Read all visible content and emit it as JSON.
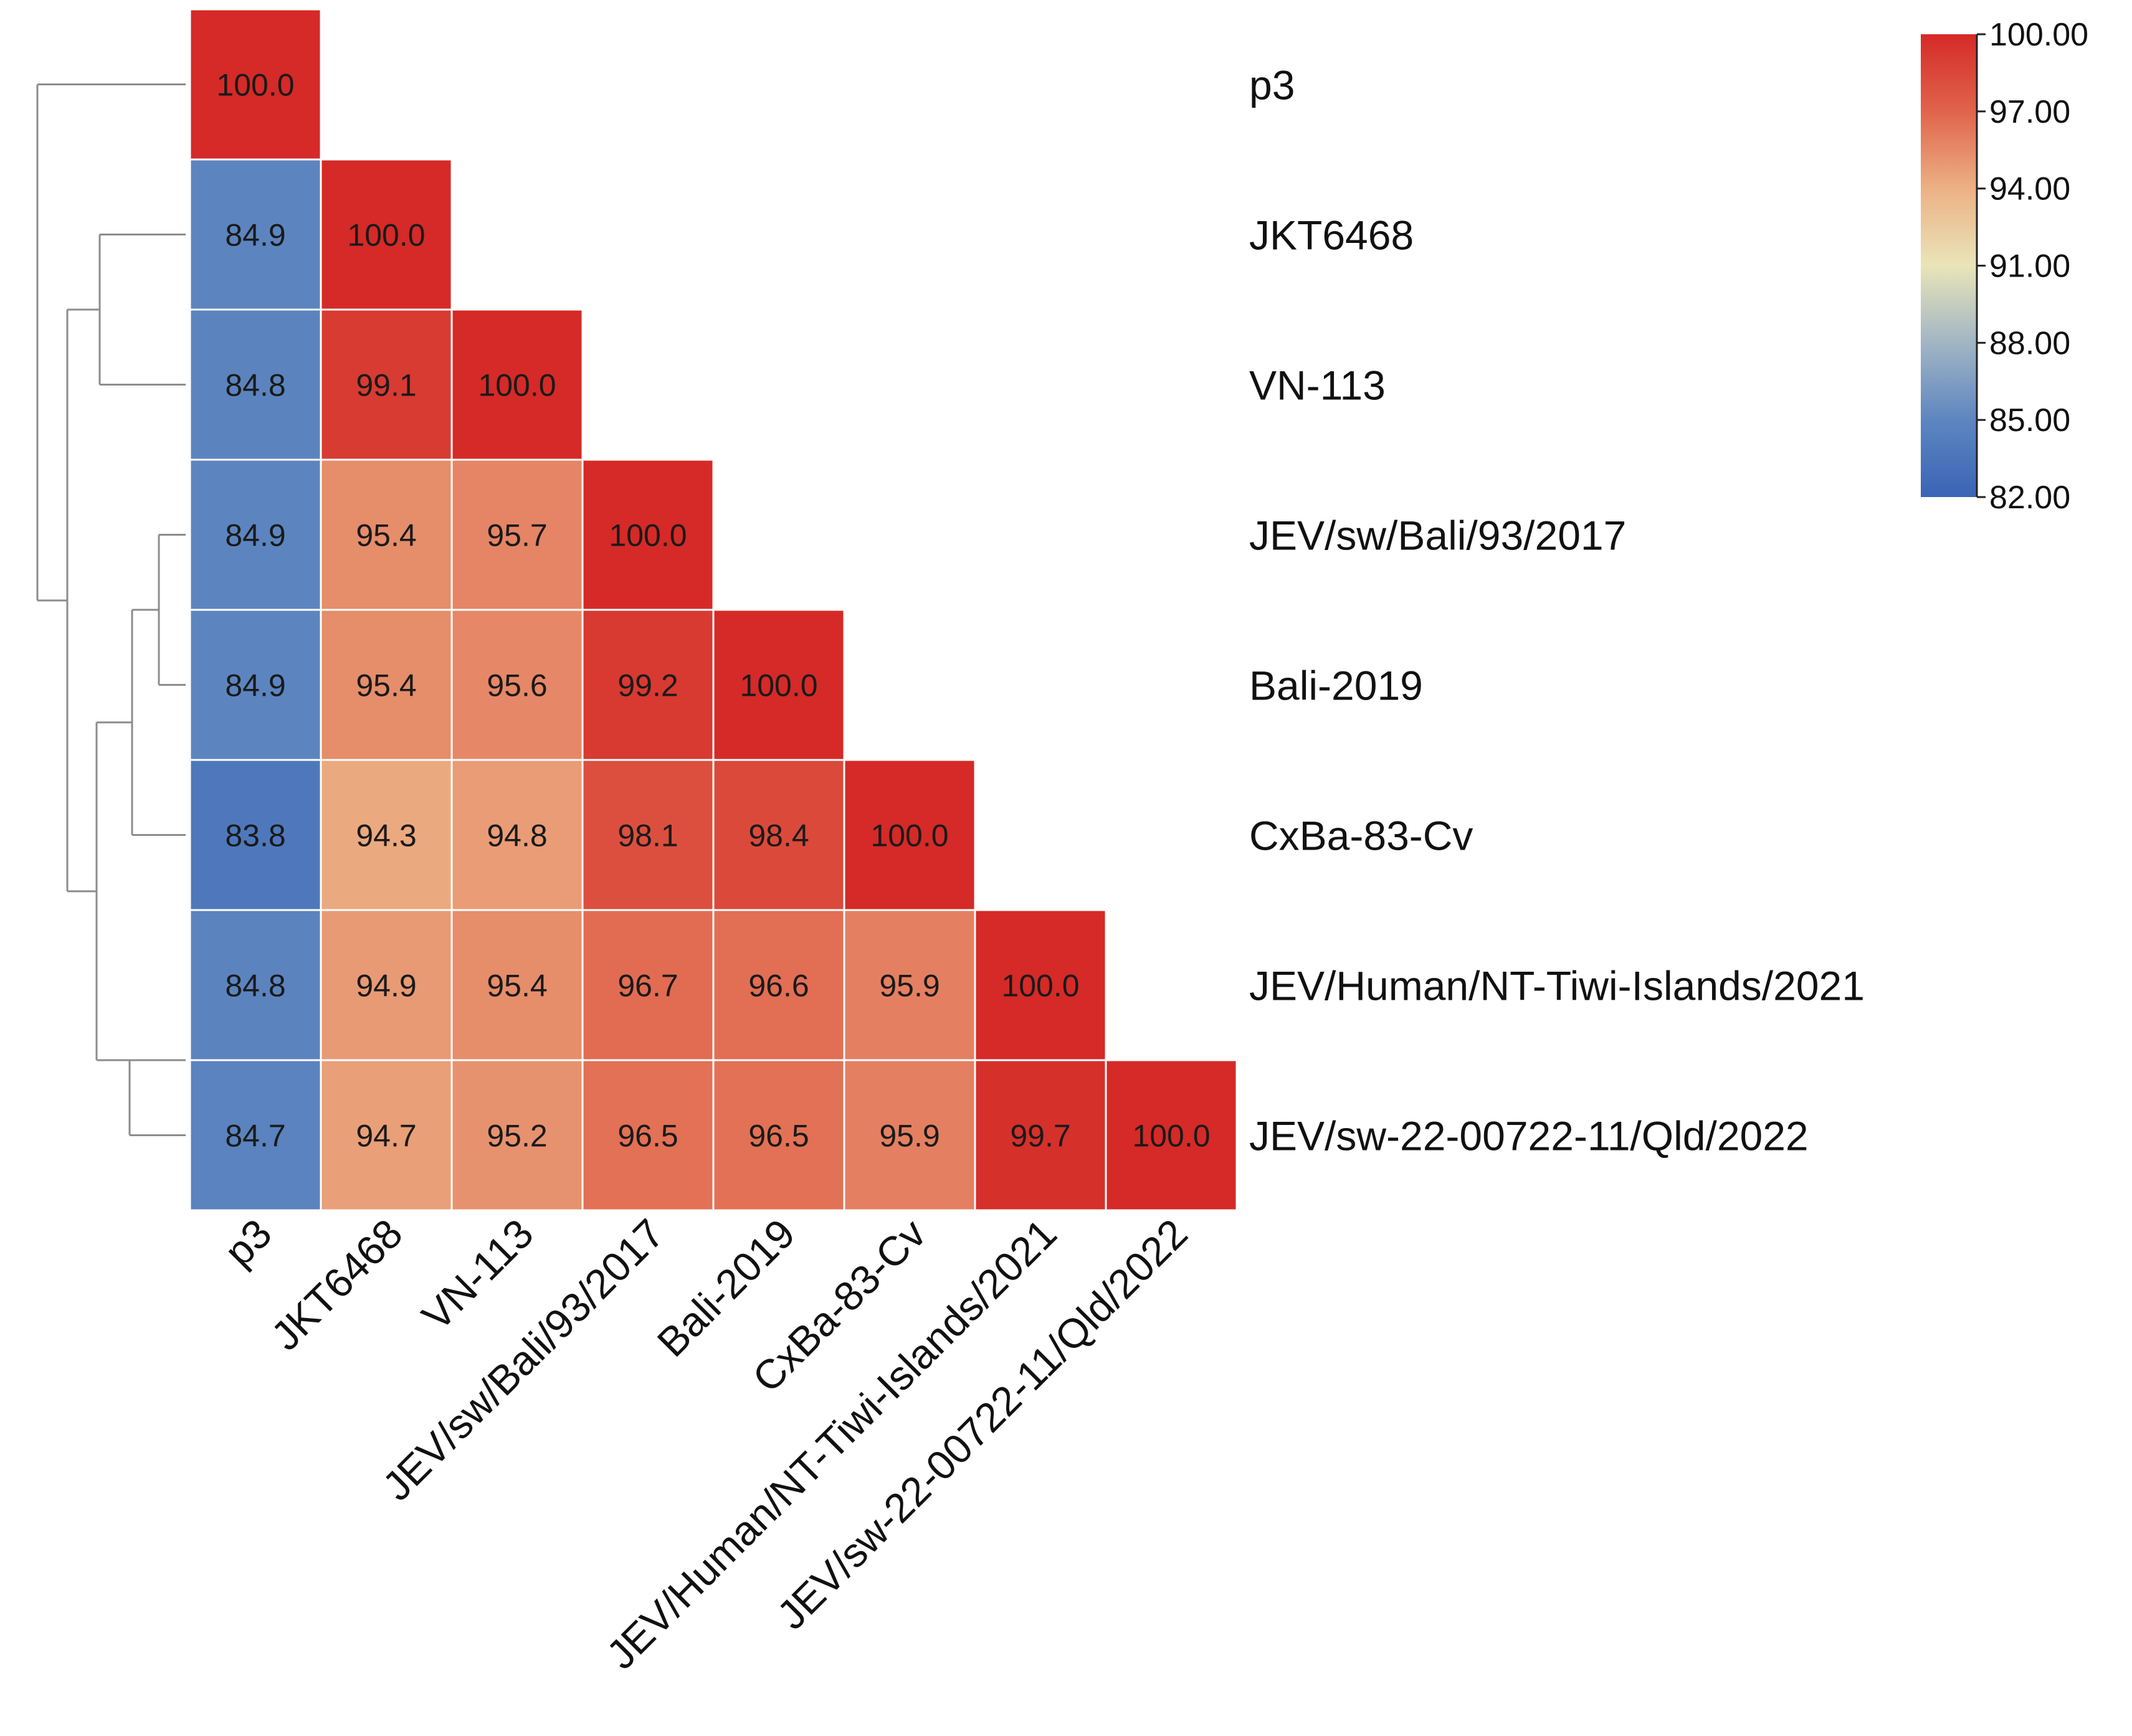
{
  "chart_data": {
    "type": "heatmap",
    "layout": "lower-triangle",
    "labels": [
      "p3",
      "JKT6468",
      "VN-113",
      "JEV/sw/Bali/93/2017",
      "Bali-2019",
      "CxBa-83-Cv",
      "JEV/Human/NT-Tiwi-Islands/2021",
      "JEV/sw-22-00722-11/Qld/2022"
    ],
    "values": [
      [
        100.0
      ],
      [
        84.9,
        100.0
      ],
      [
        84.8,
        99.1,
        100.0
      ],
      [
        84.9,
        95.4,
        95.7,
        100.0
      ],
      [
        84.9,
        95.4,
        95.6,
        99.2,
        100.0
      ],
      [
        83.8,
        94.3,
        94.8,
        98.1,
        98.4,
        100.0
      ],
      [
        84.8,
        94.9,
        95.4,
        96.7,
        96.6,
        95.9,
        100.0
      ],
      [
        84.7,
        94.7,
        95.2,
        96.5,
        96.5,
        95.9,
        99.7,
        100.0
      ]
    ],
    "colorbar": {
      "min": 82.0,
      "max": 100.0,
      "ticks": [
        "100.00",
        "97.00",
        "94.00",
        "91.00",
        "88.00",
        "85.00",
        "82.00"
      ],
      "colors": [
        "#3a64b5",
        "#5d86c0",
        "#a2b5c4",
        "#e9e5b8",
        "#ecb185",
        "#e0644c",
        "#d52a27"
      ]
    },
    "dendrogram": {
      "side": "left",
      "clusters": [
        {
          "name": "p3",
          "children": []
        },
        {
          "name": "root",
          "children": [
            "p3",
            "rest"
          ]
        },
        {
          "name": "rest",
          "children": [
            "jkt-vn",
            "others"
          ]
        },
        {
          "name": "jkt-vn",
          "children": [
            "JKT6468",
            "VN-113"
          ]
        },
        {
          "name": "others",
          "children": [
            "bali-cx",
            "tiwi-qld"
          ]
        },
        {
          "name": "bali-cx",
          "children": [
            "bali",
            "CxBa-83-Cv"
          ]
        },
        {
          "name": "bali",
          "children": [
            "JEV/sw/Bali/93/2017",
            "Bali-2019"
          ]
        },
        {
          "name": "tiwi-qld",
          "children": [
            "JEV/Human/NT-Tiwi-Islands/2021",
            "JEV/sw-22-00722-11/Qld/2022"
          ]
        }
      ]
    }
  }
}
